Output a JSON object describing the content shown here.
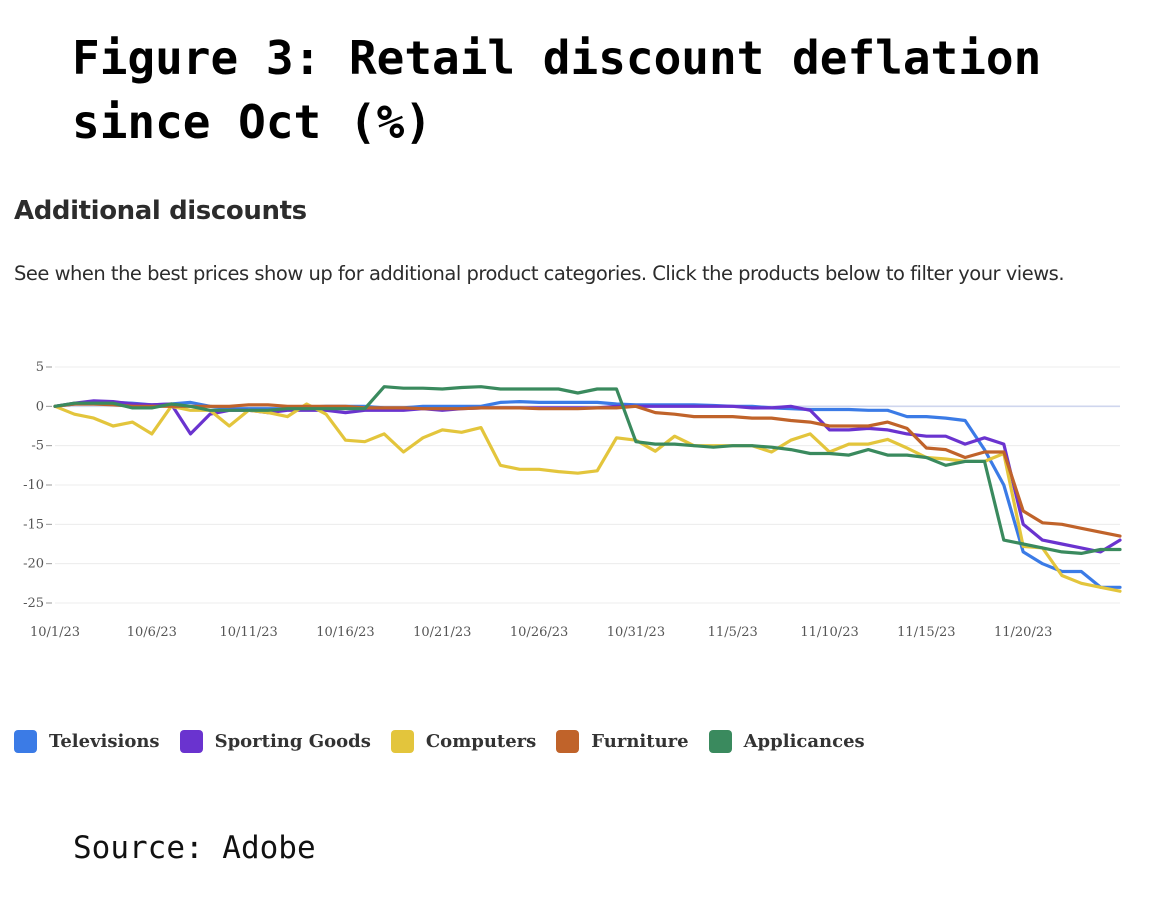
{
  "figure_title": "Figure 3: Retail discount deflation since Oct (%)",
  "section_title": "Additional discounts",
  "section_description": "See when the best prices show up for additional product categories. Click the products below to filter your views.",
  "source": "Source: Adobe",
  "colors": {
    "Televisions": "#3b7be6",
    "Sporting Goods": "#6a33cf",
    "Computers": "#e3c53c",
    "Furniture": "#c0632a",
    "Applicances": "#3a8a5e"
  },
  "chart_data": {
    "type": "line",
    "title": "",
    "xlabel": "",
    "ylabel": "",
    "ylim": [
      -25,
      5
    ],
    "yticks": [
      5,
      0,
      -5,
      -10,
      -15,
      -20,
      -25
    ],
    "ytick_labels": [
      "5",
      "0",
      "-5",
      "-10",
      "-15",
      "-20",
      "-25"
    ],
    "xtick_labels": [
      "10/1/23",
      "10/6/23",
      "10/11/23",
      "10/16/23",
      "10/21/23",
      "10/26/23",
      "10/31/23",
      "11/5/23",
      "11/10/23",
      "11/15/23",
      "11/20/23"
    ],
    "x": [
      "10/1",
      "10/2",
      "10/3",
      "10/4",
      "10/5",
      "10/6",
      "10/7",
      "10/8",
      "10/9",
      "10/10",
      "10/11",
      "10/12",
      "10/13",
      "10/14",
      "10/15",
      "10/16",
      "10/17",
      "10/18",
      "10/19",
      "10/20",
      "10/21",
      "10/22",
      "10/23",
      "10/24",
      "10/25",
      "10/26",
      "10/27",
      "10/28",
      "10/29",
      "10/30",
      "10/31",
      "11/1",
      "11/2",
      "11/3",
      "11/4",
      "11/5",
      "11/6",
      "11/7",
      "11/8",
      "11/9",
      "11/10",
      "11/11",
      "11/12",
      "11/13",
      "11/14",
      "11/15",
      "11/16",
      "11/17",
      "11/18",
      "11/19",
      "11/20",
      "11/21",
      "11/22",
      "11/23",
      "11/24",
      "11/25"
    ],
    "grid": true,
    "legend_position": "bottom-left",
    "series": [
      {
        "name": "Televisions",
        "values": [
          0,
          0.3,
          0.5,
          0.5,
          0.4,
          0.2,
          0.3,
          0.5,
          0,
          -0.3,
          -0.3,
          -0.3,
          -0.3,
          -0.1,
          0,
          0,
          0,
          -0.2,
          -0.2,
          0,
          0,
          0,
          0,
          0.5,
          0.6,
          0.5,
          0.5,
          0.5,
          0.5,
          0.3,
          0.2,
          0.2,
          0.2,
          0.2,
          0.1,
          0,
          0,
          -0.2,
          -0.3,
          -0.4,
          -0.4,
          -0.4,
          -0.5,
          -0.5,
          -1.3,
          -1.3,
          -1.5,
          -1.8,
          -5.5,
          -10,
          -18.5,
          -20,
          -21,
          -21,
          -23,
          -23
        ]
      },
      {
        "name": "Sporting Goods",
        "values": [
          0,
          0.4,
          0.7,
          0.6,
          0.3,
          0.2,
          0.3,
          -3.5,
          -1,
          -0.5,
          -0.5,
          -0.8,
          -0.5,
          -0.5,
          -0.5,
          -0.8,
          -0.5,
          -0.5,
          -0.5,
          -0.3,
          -0.5,
          -0.3,
          -0.2,
          -0.2,
          -0.2,
          -0.2,
          -0.2,
          -0.2,
          -0.2,
          0,
          0,
          0,
          0,
          0,
          0,
          0,
          -0.2,
          -0.2,
          0,
          -0.5,
          -3,
          -3,
          -2.8,
          -3,
          -3.5,
          -3.8,
          -3.8,
          -4.8,
          -4,
          -4.8,
          -15,
          -17,
          -17.5,
          -18,
          -18.5,
          -17
        ]
      },
      {
        "name": "Computers",
        "values": [
          0,
          -1,
          -1.5,
          -2.5,
          -2,
          -3.5,
          0,
          -0.5,
          -0.5,
          -2.5,
          -0.5,
          -0.8,
          -1.3,
          0.3,
          -1,
          -4.3,
          -4.5,
          -3.5,
          -5.8,
          -4,
          -3,
          -3.3,
          -2.7,
          -7.5,
          -8,
          -8,
          -8.3,
          -8.5,
          -8.2,
          -4,
          -4.3,
          -5.7,
          -3.8,
          -5,
          -5,
          -5,
          -5,
          -5.8,
          -4.3,
          -3.5,
          -5.8,
          -4.8,
          -4.8,
          -4.2,
          -5.3,
          -6.5,
          -6.7,
          -7,
          -7,
          -6,
          -17.8,
          -18,
          -21.5,
          -22.5,
          -23,
          -23.5
        ]
      },
      {
        "name": "Furniture",
        "values": [
          0,
          0.3,
          0.3,
          0.2,
          0,
          0,
          0,
          0,
          0,
          0,
          0.2,
          0.2,
          0,
          0,
          0,
          0,
          -0.2,
          -0.2,
          -0.2,
          -0.3,
          -0.3,
          -0.3,
          -0.2,
          -0.2,
          -0.2,
          -0.3,
          -0.3,
          -0.3,
          -0.2,
          -0.2,
          0,
          -0.8,
          -1,
          -1.3,
          -1.3,
          -1.3,
          -1.5,
          -1.5,
          -1.8,
          -2,
          -2.5,
          -2.5,
          -2.5,
          -2,
          -2.8,
          -5.3,
          -5.5,
          -6.5,
          -5.8,
          -5.8,
          -13.3,
          -14.8,
          -15,
          -15.5,
          -16,
          -16.5
        ]
      },
      {
        "name": "Applicances",
        "values": [
          0,
          0.4,
          0.4,
          0.4,
          -0.2,
          -0.2,
          0.3,
          0,
          -0.5,
          -0.5,
          -0.5,
          -0.5,
          -0.3,
          -0.3,
          -0.3,
          -0.3,
          -0.3,
          2.5,
          2.3,
          2.3,
          2.2,
          2.4,
          2.5,
          2.2,
          2.2,
          2.2,
          2.2,
          1.7,
          2.2,
          2.2,
          -4.5,
          -4.8,
          -4.8,
          -5,
          -5.2,
          -5,
          -5,
          -5.2,
          -5.5,
          -6,
          -6,
          -6.2,
          -5.5,
          -6.2,
          -6.2,
          -6.5,
          -7.5,
          -7,
          -7,
          -17,
          -17.5,
          -18,
          -18.5,
          -18.7,
          -18.2,
          -18.2
        ]
      }
    ]
  }
}
